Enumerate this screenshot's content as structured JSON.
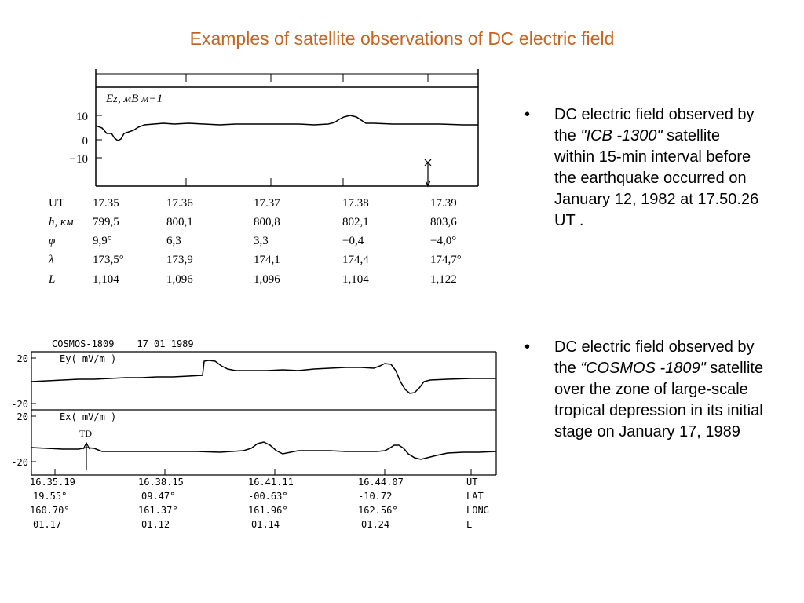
{
  "slide": {
    "title": "Examples of satellite observations of DC electric field"
  },
  "figure1": {
    "plot_label": "Ez, мВ м−1",
    "y_ticks": [
      "10",
      "0",
      "−10"
    ],
    "table": {
      "row_labels": [
        "UT",
        "h, км",
        "φ",
        "λ",
        "L"
      ],
      "columns": [
        [
          "17.35",
          "799,5",
          "9,9°",
          "173,5°",
          "1,104"
        ],
        [
          "17.36",
          "800,1",
          "6,3",
          "173,9",
          "1,096"
        ],
        [
          "17.37",
          "800,8",
          "3,3",
          "174,1",
          "1,096"
        ],
        [
          "17.38",
          "802,1",
          "−0,4",
          "174,4",
          "1,104"
        ],
        [
          "17.39",
          "803,6",
          "−4,0°",
          "174,7°",
          "1,122"
        ]
      ]
    }
  },
  "figure2": {
    "header": "COSMOS-1809    17 01 1989",
    "panel1_label": "Ey( mV/m )",
    "panel2_label": "Ex( mV/m )",
    "panel1_ticks": [
      "20",
      "-20"
    ],
    "panel2_ticks": [
      "20",
      "-20"
    ],
    "marker_label": "TD",
    "table": {
      "columns": [
        [
          "16.35.19",
          "19.55°",
          "160.70°",
          "01.17"
        ],
        [
          "16.38.15",
          "09.47°",
          "161.37°",
          "01.12"
        ],
        [
          "16.41.11",
          "-00.63°",
          "161.96°",
          "01.14"
        ],
        [
          "16.44.07",
          "-10.72",
          "162.56°",
          "01.24"
        ]
      ],
      "row_labels": [
        "UT",
        "LAT",
        "LONG",
        "L"
      ]
    }
  },
  "bullets": [
    {
      "pre": "DC electric field observed  by the ",
      "italic": "\"ICB -1300\"",
      "post": " satellite within 15-min  interval  before the  earthquake occurred on January 12, 1982 at 17.50.26 UT ."
    },
    {
      "pre": "DC electric field observed  by the ",
      "italic": "“COSMOS -1809\"",
      "post": " satellite over the zone of  large-scale tropical depression in its initial stage on January 17, 1989"
    }
  ]
}
